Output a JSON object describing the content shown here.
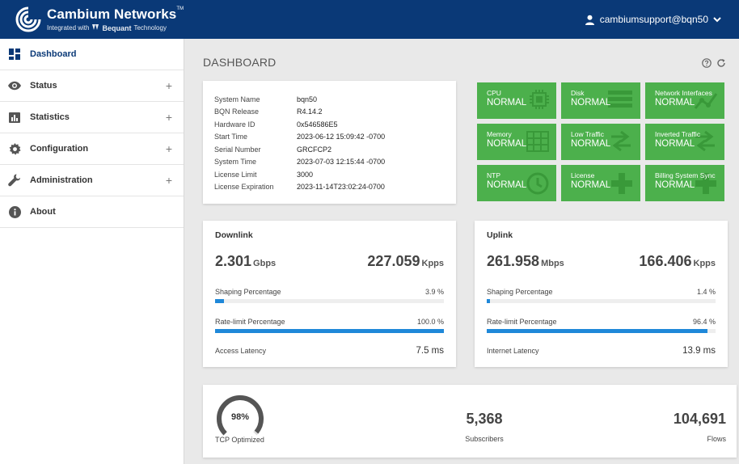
{
  "header": {
    "brand": "Cambium Networks",
    "brand_tm": "TM",
    "tagline_pre": "Integrated with",
    "tagline_brand": "Bequant",
    "tagline_post": "Technology",
    "user": "cambiumsupport@bqn50"
  },
  "sidebar": {
    "items": [
      {
        "label": "Dashboard",
        "icon": "dashboard-icon"
      },
      {
        "label": "Status",
        "icon": "eye-icon"
      },
      {
        "label": "Statistics",
        "icon": "bar-chart-icon"
      },
      {
        "label": "Configuration",
        "icon": "gear-icon"
      },
      {
        "label": "Administration",
        "icon": "wrench-icon"
      },
      {
        "label": "About",
        "icon": "info-icon"
      }
    ],
    "expand_symbol": "+"
  },
  "page": {
    "title": "DASHBOARD"
  },
  "system": {
    "rows": [
      {
        "k": "System Name",
        "v": "bqn50"
      },
      {
        "k": "BQN Release",
        "v": "R4.14.2"
      },
      {
        "k": "Hardware ID",
        "v": "0x546586E5"
      },
      {
        "k": "Start Time",
        "v": "2023-06-12 15:09:42 -0700"
      },
      {
        "k": "Serial Number",
        "v": "GRCFCP2"
      },
      {
        "k": "System Time",
        "v": "2023-07-03 12:15:44 -0700"
      },
      {
        "k": "License Limit",
        "v": "3000"
      },
      {
        "k": "License Expiration",
        "v": "2023-11-14T23:02:24-0700"
      }
    ]
  },
  "tiles": [
    {
      "name": "CPU",
      "status": "NORMAL",
      "icon": "cpu-icon"
    },
    {
      "name": "Disk",
      "status": "NORMAL",
      "icon": "disk-icon"
    },
    {
      "name": "Network Interfaces",
      "status": "NORMAL",
      "icon": "network-icon"
    },
    {
      "name": "Memory",
      "status": "NORMAL",
      "icon": "memory-icon"
    },
    {
      "name": "Low Traffic",
      "status": "NORMAL",
      "icon": "traffic-arrows-icon"
    },
    {
      "name": "Inverted Traffic",
      "status": "NORMAL",
      "icon": "traffic-arrows-icon"
    },
    {
      "name": "NTP",
      "status": "NORMAL",
      "icon": "clock-icon"
    },
    {
      "name": "License",
      "status": "NORMAL",
      "icon": "license-icon"
    },
    {
      "name": "Billing System Sync",
      "status": "NORMAL",
      "icon": "sync-icon"
    }
  ],
  "colors": {
    "header": "#0a3977",
    "tile": "#4cb04c",
    "bar": "#1f88d9",
    "gauge": "#555555"
  },
  "downlink": {
    "title": "Downlink",
    "rate": "2.301",
    "rate_unit": "Gbps",
    "pps": "227.059",
    "pps_unit": "Kpps",
    "shaping_label": "Shaping Percentage",
    "shaping_text": "3.9 %",
    "shaping": 3.9,
    "ratelimit_label": "Rate-limit Percentage",
    "ratelimit_text": "100.0 %",
    "ratelimit": 100.0,
    "latency_label": "Access Latency",
    "latency": "7.5 ms"
  },
  "uplink": {
    "title": "Uplink",
    "rate": "261.958",
    "rate_unit": "Mbps",
    "pps": "166.406",
    "pps_unit": "Kpps",
    "shaping_label": "Shaping Percentage",
    "shaping_text": "1.4 %",
    "shaping": 1.4,
    "ratelimit_label": "Rate-limit Percentage",
    "ratelimit_text": "96.4 %",
    "ratelimit": 96.4,
    "latency_label": "Internet Latency",
    "latency": "13.9 ms"
  },
  "summary": {
    "tcp_value": "98%",
    "tcp_percent": 98,
    "tcp_label": "TCP Optimized",
    "subscribers": "5,368",
    "subscribers_label": "Subscribers",
    "flows": "104,691",
    "flows_label": "Flows"
  }
}
